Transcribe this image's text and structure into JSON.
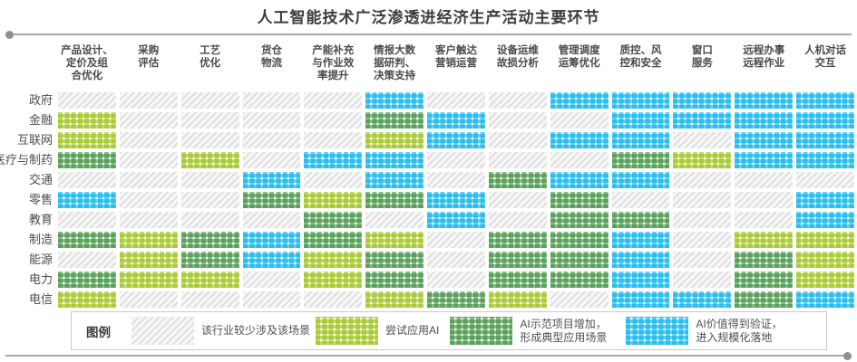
{
  "title": "人工智能技术广泛渗透进经济生产活动主要环节",
  "legend": {
    "title": "图例",
    "items": [
      {
        "level": 0,
        "label": "该行业较少涉及该场景"
      },
      {
        "level": 1,
        "label": "尝试应用AI"
      },
      {
        "level": 2,
        "label": "AI示范项目增加，\n形成典型应用场景"
      },
      {
        "level": 3,
        "label": "AI价值得到验证，\n进入规模化落地"
      }
    ]
  },
  "colors": {
    "rare_gray": "#dcdcdc",
    "try_light_green": "#aacb36",
    "demo_dark_green": "#4f9e50",
    "scale_blue": "#29beee"
  },
  "chart_data": {
    "type": "heatmap",
    "title": "人工智能技术广泛渗透进经济生产活动主要环节",
    "columns": [
      "产品设计、\n定价及组\n合优化",
      "采购\n评估",
      "工艺\n优化",
      "货仓\n物流",
      "产能补充\n与作业效\n率提升",
      "情报大数\n据研判、\n决策支持",
      "客户触达\n营销运营",
      "设备运维\n故损分析",
      "管理调度\n运筹优化",
      "质控、风\n控和安全",
      "窗口\n服务",
      "远程办事\n远程作业",
      "人机对话\n交互"
    ],
    "rows": [
      "政府",
      "金融",
      "互联网",
      "医疗与制药",
      "交通",
      "零售",
      "教育",
      "制造",
      "能源",
      "电力",
      "电信"
    ],
    "levels": [
      "该行业较少涉及该场景",
      "尝试应用AI",
      "AI示范项目增加，形成典型应用场景",
      "AI价值得到验证，进入规模化落地"
    ],
    "values": [
      [
        0,
        0,
        0,
        0,
        0,
        3,
        0,
        0,
        3,
        3,
        3,
        3,
        3
      ],
      [
        1,
        0,
        0,
        0,
        0,
        2,
        3,
        0,
        0,
        3,
        3,
        3,
        3
      ],
      [
        1,
        0,
        0,
        0,
        0,
        1,
        3,
        0,
        3,
        3,
        0,
        3,
        3
      ],
      [
        2,
        0,
        1,
        0,
        3,
        3,
        0,
        0,
        0,
        2,
        1,
        3,
        3
      ],
      [
        0,
        0,
        0,
        3,
        0,
        3,
        0,
        2,
        3,
        3,
        0,
        0,
        0
      ],
      [
        3,
        0,
        0,
        2,
        1,
        2,
        3,
        0,
        2,
        0,
        0,
        0,
        3
      ],
      [
        0,
        0,
        0,
        0,
        2,
        0,
        3,
        0,
        2,
        2,
        0,
        0,
        3
      ],
      [
        2,
        1,
        2,
        3,
        2,
        1,
        0,
        2,
        2,
        3,
        0,
        1,
        1
      ],
      [
        0,
        1,
        2,
        3,
        1,
        2,
        0,
        2,
        2,
        3,
        0,
        2,
        1
      ],
      [
        2,
        1,
        1,
        0,
        1,
        2,
        0,
        2,
        2,
        3,
        0,
        2,
        1
      ],
      [
        1,
        0,
        0,
        0,
        0,
        1,
        2,
        1,
        0,
        3,
        3,
        2,
        3
      ]
    ],
    "legend_position": "bottom",
    "grid": false
  }
}
